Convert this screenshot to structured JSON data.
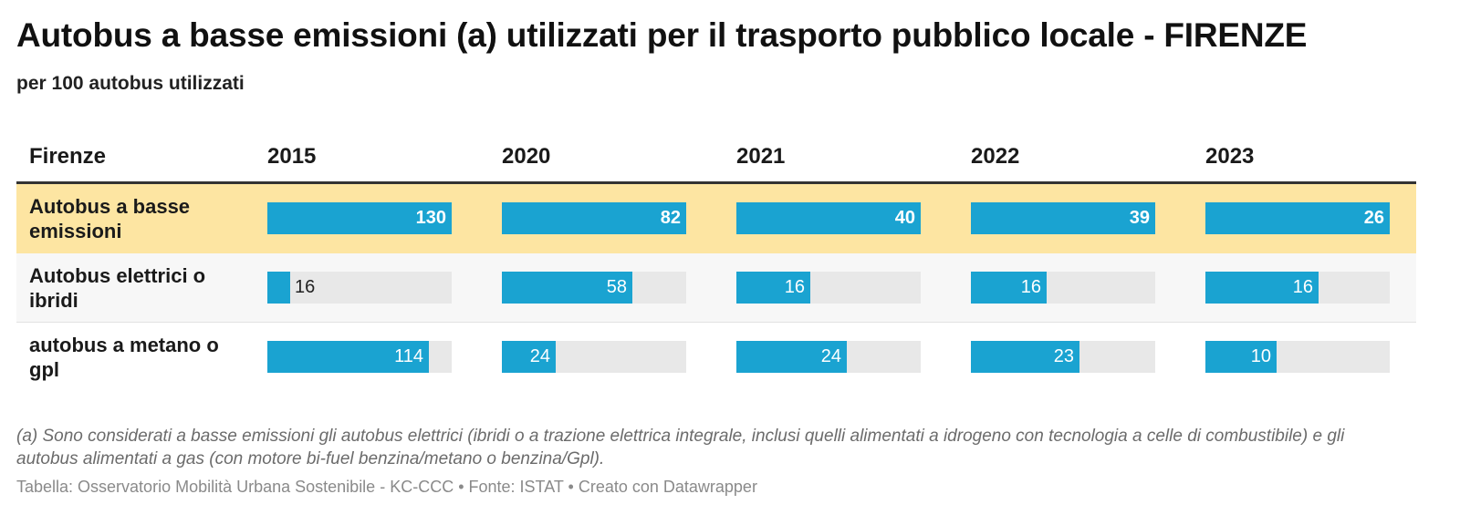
{
  "title": "Autobus a basse emissioni (a) utilizzati per il trasporto pubblico locale - FIRENZE",
  "subtitle": "per 100 autobus utilizzati",
  "chart_data": {
    "type": "table",
    "row_header": "Firenze",
    "columns": [
      "2015",
      "2020",
      "2021",
      "2022",
      "2023"
    ],
    "rows": [
      {
        "label": "Autobus a basse emissioni",
        "values": [
          130,
          82,
          40,
          39,
          26
        ],
        "highlight": true
      },
      {
        "label": "Autobus elettrici o ibridi",
        "values": [
          16,
          58,
          16,
          16,
          16
        ]
      },
      {
        "label": "autobus a metano o gpl",
        "values": [
          114,
          24,
          24,
          23,
          10
        ]
      }
    ],
    "column_max": [
      130,
      82,
      40,
      39,
      26
    ],
    "bar_color": "#1aa3d1",
    "track_color": "#e8e8e8",
    "highlight_color": "#fde5a2"
  },
  "footnote": "(a) Sono considerati a basse emissioni gli autobus elettrici (ibridi o a trazione elettrica integrale, inclusi quelli alimentati a idrogeno con tecnologia a celle di combustibile) e gli autobus alimentati a gas (con motore bi-fuel benzina/metano o benzina/Gpl).",
  "source": "Tabella: Osservatorio Mobilità Urbana Sostenibile - KC-CCC • Fonte: ISTAT • Creato con Datawrapper"
}
